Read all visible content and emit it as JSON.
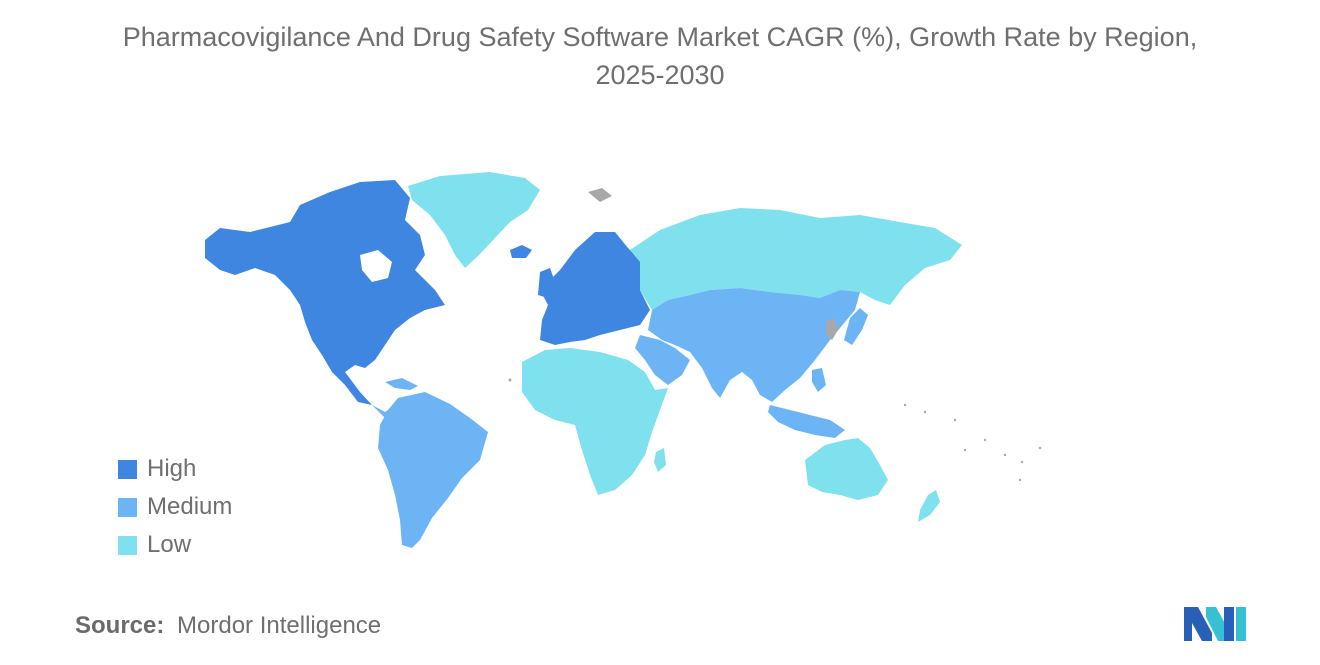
{
  "title": {
    "line1": "Pharmacovigilance And Drug Safety Software Market CAGR (%), Growth Rate by Region,",
    "line2": "2025-2030"
  },
  "legend": [
    {
      "label": "High",
      "color": "#3f86e0"
    },
    {
      "label": "Medium",
      "color": "#6db4f5"
    },
    {
      "label": "Low",
      "color": "#7fe0ee"
    }
  ],
  "colors": {
    "no_data": "#a8a8a8"
  },
  "regions": [
    {
      "name": "North America",
      "level": "High"
    },
    {
      "name": "Europe",
      "level": "High"
    },
    {
      "name": "Asia-Pacific (China, India, South-East Asia, Japan)",
      "level": "Medium"
    },
    {
      "name": "Latin America",
      "level": "Medium"
    },
    {
      "name": "Middle East",
      "level": "Medium"
    },
    {
      "name": "Russia",
      "level": "Low"
    },
    {
      "name": "Greenland",
      "level": "Low"
    },
    {
      "name": "Africa",
      "level": "Low"
    },
    {
      "name": "Australia & New Zealand",
      "level": "Low"
    }
  ],
  "source": {
    "key": "Source:",
    "value": "Mordor Intelligence"
  },
  "logo": {
    "icon": "mordor-intelligence-logo"
  }
}
